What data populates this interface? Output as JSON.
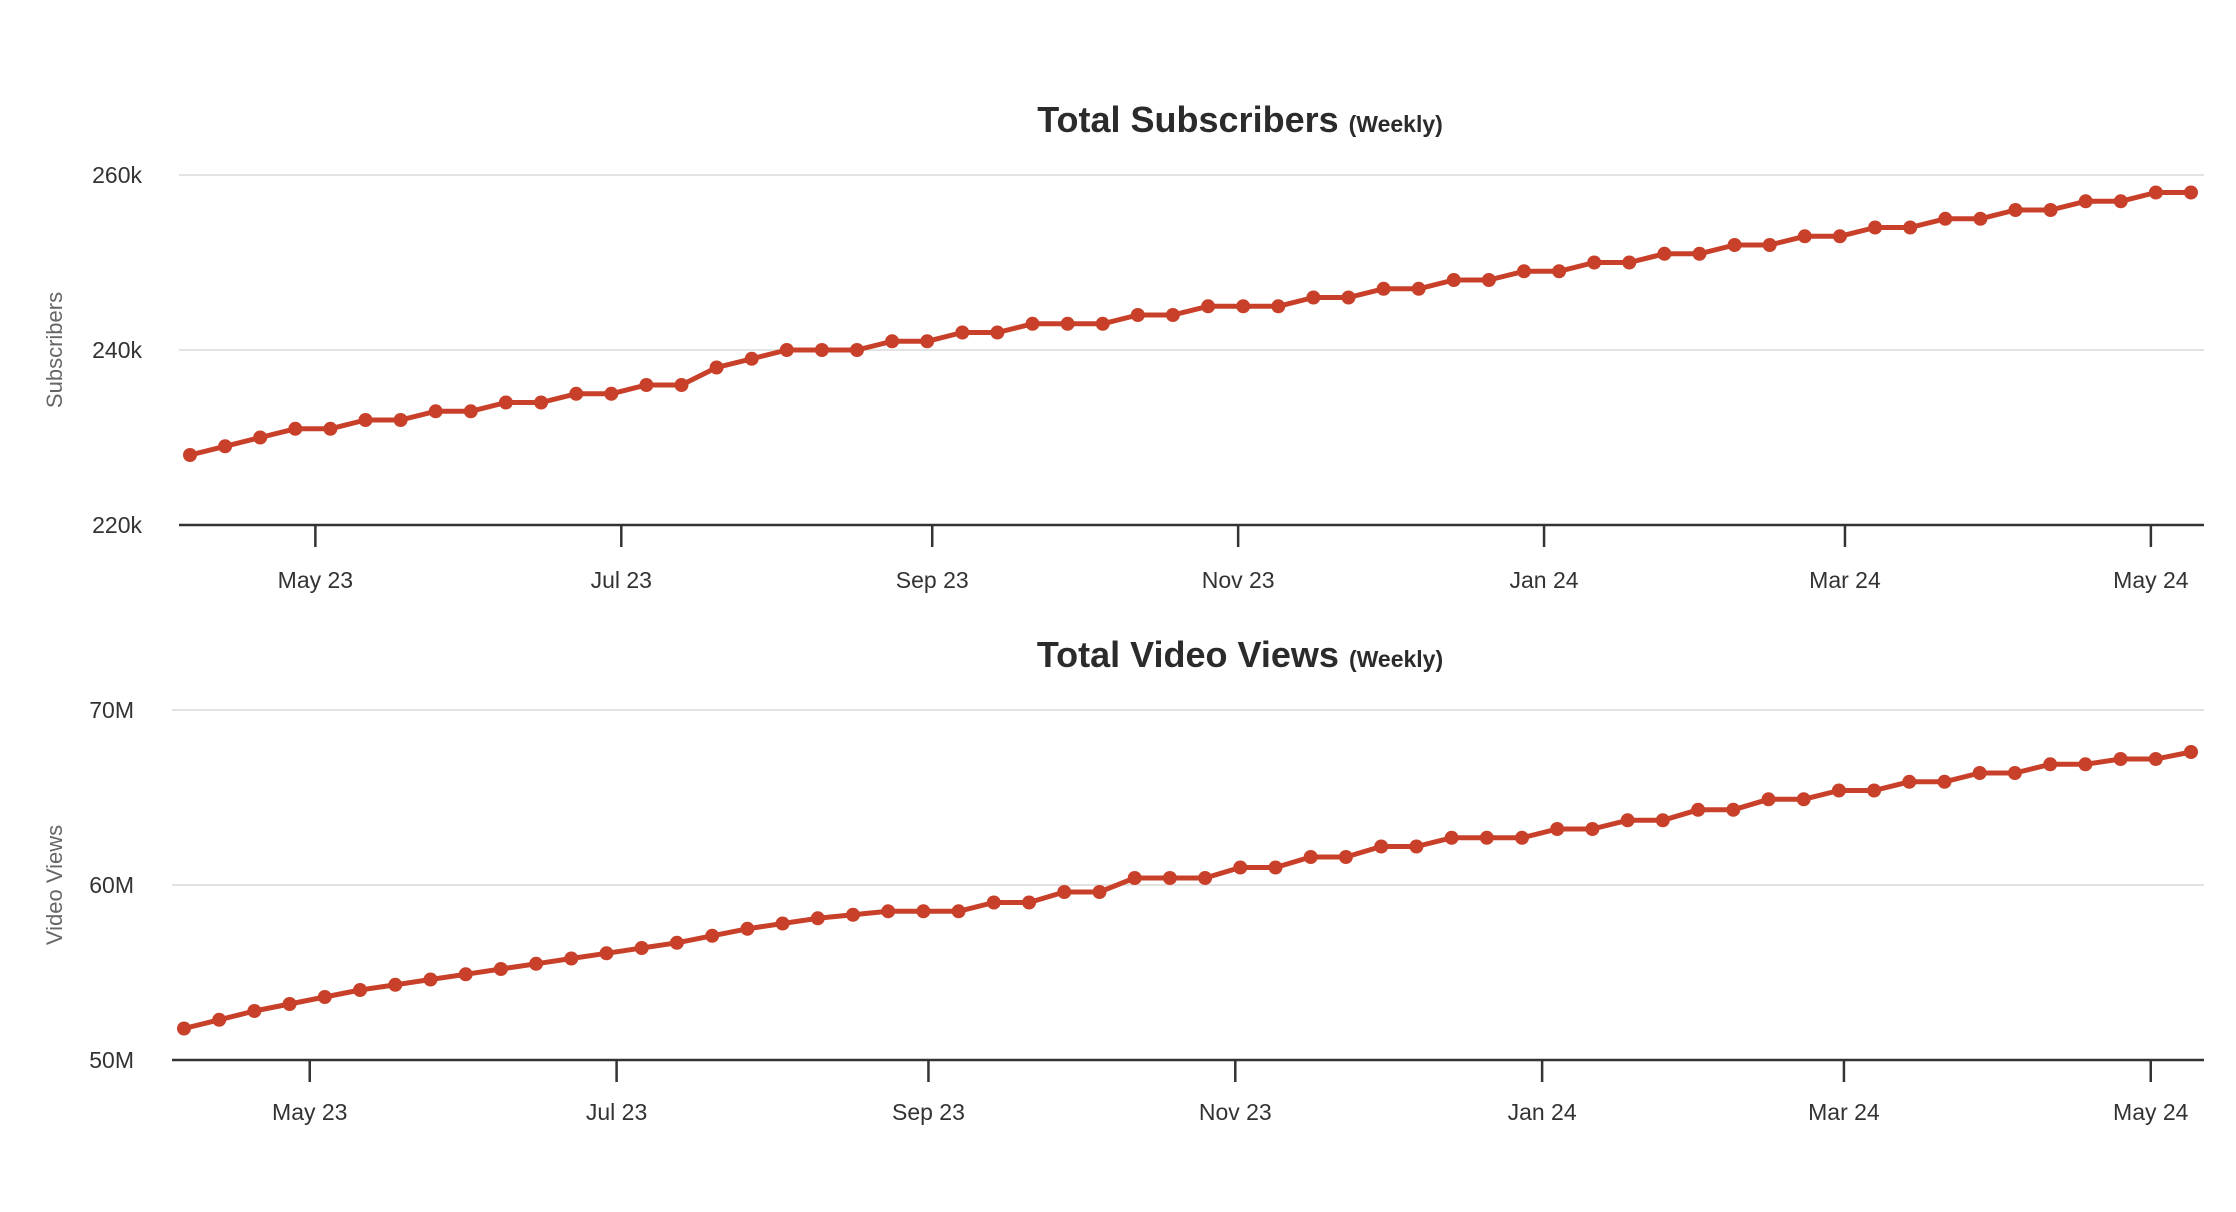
{
  "chart_data": [
    {
      "type": "line",
      "title": "Total Subscribers",
      "subtitle": "(Weekly)",
      "xlabel": "",
      "ylabel": "Subscribers",
      "y_ticks": [
        "220k",
        "240k",
        "260k"
      ],
      "y_tick_values": [
        220000,
        240000,
        260000
      ],
      "ylim": [
        220000,
        260000
      ],
      "x_tick_labels": [
        "May 23",
        "Jul 23",
        "Sep 23",
        "Nov 23",
        "Jan 24",
        "Mar 24",
        "May 24"
      ],
      "x_tick_dates": [
        "2023-05-01",
        "2023-07-01",
        "2023-09-01",
        "2023-11-01",
        "2024-01-01",
        "2024-03-01",
        "2024-05-01"
      ],
      "x_range": [
        "2023-04-03",
        "2024-05-13"
      ],
      "grid": true,
      "color": "#c9402a",
      "series": [
        {
          "x": [
            "2023-04-06",
            "2023-04-13",
            "2023-04-20",
            "2023-04-27",
            "2023-05-04",
            "2023-05-11",
            "2023-05-18",
            "2023-05-25",
            "2023-06-01",
            "2023-06-08",
            "2023-06-15",
            "2023-06-22",
            "2023-06-29",
            "2023-07-06",
            "2023-07-13",
            "2023-07-20",
            "2023-07-27",
            "2023-08-03",
            "2023-08-10",
            "2023-08-17",
            "2023-08-24",
            "2023-08-31",
            "2023-09-07",
            "2023-09-14",
            "2023-09-21",
            "2023-09-28",
            "2023-10-05",
            "2023-10-12",
            "2023-10-19",
            "2023-10-26",
            "2023-11-02",
            "2023-11-09",
            "2023-11-16",
            "2023-11-23",
            "2023-11-30",
            "2023-12-07",
            "2023-12-14",
            "2023-12-21",
            "2023-12-28",
            "2024-01-04",
            "2024-01-11",
            "2024-01-18",
            "2024-01-25",
            "2024-02-01",
            "2024-02-08",
            "2024-02-15",
            "2024-02-22",
            "2024-02-29",
            "2024-03-07",
            "2024-03-14",
            "2024-03-21",
            "2024-03-28",
            "2024-04-04",
            "2024-04-11",
            "2024-04-18",
            "2024-04-25",
            "2024-05-02",
            "2024-05-09"
          ],
          "values": [
            228000,
            229000,
            230000,
            231000,
            231000,
            232000,
            232000,
            233000,
            233000,
            234000,
            234000,
            235000,
            235000,
            236000,
            236000,
            238000,
            239000,
            240000,
            240000,
            240000,
            241000,
            241000,
            242000,
            242000,
            243000,
            243000,
            243000,
            244000,
            244000,
            245000,
            245000,
            245000,
            246000,
            246000,
            247000,
            247000,
            248000,
            248000,
            249000,
            249000,
            250000,
            250000,
            251000,
            251000,
            252000,
            252000,
            253000,
            253000,
            254000,
            254000,
            255000,
            255000,
            256000,
            256000,
            257000,
            257000,
            258000,
            258000
          ]
        }
      ]
    },
    {
      "type": "line",
      "title": "Total Video Views",
      "subtitle": "(Weekly)",
      "xlabel": "",
      "ylabel": "Video Views",
      "y_ticks": [
        "50M",
        "60M",
        "70M"
      ],
      "y_tick_values": [
        50000000,
        60000000,
        70000000
      ],
      "ylim": [
        50000000,
        70000000
      ],
      "x_tick_labels": [
        "May 23",
        "Jul 23",
        "Sep 23",
        "Nov 23",
        "Jan 24",
        "Mar 24",
        "May 24"
      ],
      "x_tick_dates": [
        "2023-05-01",
        "2023-07-01",
        "2023-09-01",
        "2023-11-01",
        "2024-01-01",
        "2024-03-01",
        "2024-05-01"
      ],
      "x_range": [
        "2023-04-02",
        "2024-05-13"
      ],
      "grid": true,
      "color": "#c9402a",
      "series": [
        {
          "x": [
            "2023-04-06",
            "2023-04-13",
            "2023-04-20",
            "2023-04-27",
            "2023-05-04",
            "2023-05-11",
            "2023-05-18",
            "2023-05-25",
            "2023-06-01",
            "2023-06-08",
            "2023-06-15",
            "2023-06-22",
            "2023-06-29",
            "2023-07-06",
            "2023-07-13",
            "2023-07-20",
            "2023-07-27",
            "2023-08-03",
            "2023-08-10",
            "2023-08-17",
            "2023-08-24",
            "2023-08-31",
            "2023-09-07",
            "2023-09-14",
            "2023-09-21",
            "2023-09-28",
            "2023-10-05",
            "2023-10-12",
            "2023-10-19",
            "2023-10-26",
            "2023-11-02",
            "2023-11-09",
            "2023-11-16",
            "2023-11-23",
            "2023-11-30",
            "2023-12-07",
            "2023-12-14",
            "2023-12-21",
            "2023-12-28",
            "2024-01-04",
            "2024-01-11",
            "2024-01-18",
            "2024-01-25",
            "2024-02-01",
            "2024-02-08",
            "2024-02-15",
            "2024-02-22",
            "2024-02-29",
            "2024-03-07",
            "2024-03-14",
            "2024-03-21",
            "2024-03-28",
            "2024-04-04",
            "2024-04-11",
            "2024-04-18",
            "2024-04-25",
            "2024-05-02",
            "2024-05-09"
          ],
          "values": [
            51800000,
            52300000,
            52800000,
            53200000,
            53600000,
            54000000,
            54300000,
            54600000,
            54900000,
            55200000,
            55500000,
            55800000,
            56100000,
            56400000,
            56700000,
            57100000,
            57500000,
            57800000,
            58100000,
            58300000,
            58500000,
            58500000,
            58500000,
            59000000,
            59000000,
            59600000,
            59600000,
            60400000,
            60400000,
            60400000,
            61000000,
            61000000,
            61600000,
            61600000,
            62200000,
            62200000,
            62700000,
            62700000,
            62700000,
            63200000,
            63200000,
            63700000,
            63700000,
            64300000,
            64300000,
            64900000,
            64900000,
            65400000,
            65400000,
            65900000,
            65900000,
            66400000,
            66400000,
            66900000,
            66900000,
            67200000,
            67200000,
            67600000
          ]
        }
      ]
    }
  ]
}
